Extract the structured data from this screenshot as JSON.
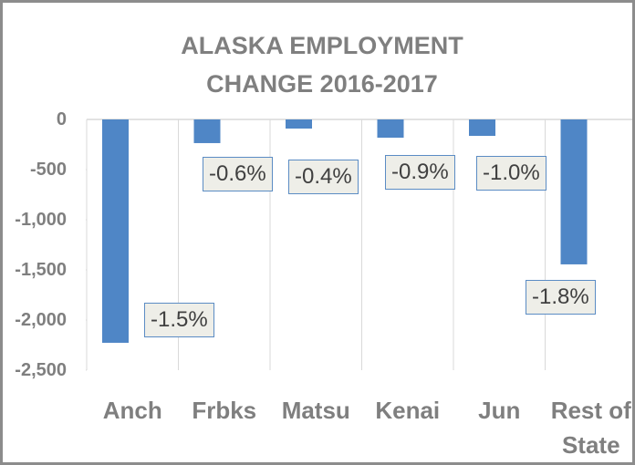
{
  "chart_data": {
    "type": "bar",
    "title": "ALASKA EMPLOYMENT CHANGE 2016-2017",
    "categories": [
      "Anch",
      "Frbks",
      "Matsu",
      "Kenai",
      "Jun",
      "Rest of State"
    ],
    "values": [
      -2227,
      -236,
      -91,
      -182,
      -164,
      -1445
    ],
    "annotations": [
      "-1.5%",
      "-0.6%",
      "-0.4%",
      "-0.9%",
      "-1.0%",
      "-1.8%"
    ],
    "color": "#4f86c6",
    "ylim": [
      -2500,
      0
    ],
    "yticks": [
      0,
      {
        "value": -500,
        "label": "-500"
      },
      {
        "value": -1000,
        "label": "-1,000"
      },
      {
        "value": -1500,
        "label": "-1,500"
      },
      {
        "value": -2000,
        "label": "-2,000"
      },
      {
        "value": -2500,
        "label": "-2,500"
      }
    ]
  }
}
